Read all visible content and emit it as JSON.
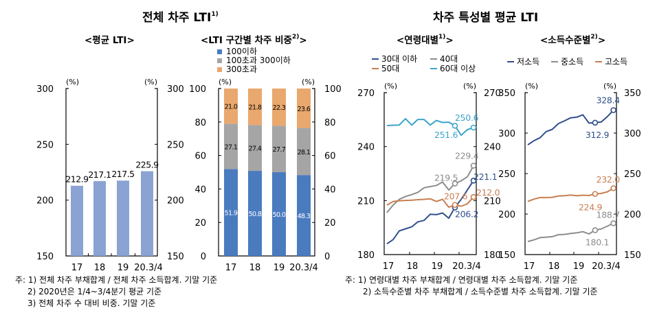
{
  "groups": [
    {
      "title": "전체 차주 LTI",
      "note": "1)"
    },
    {
      "title": "차주 특성별 평균 LTI"
    }
  ],
  "chart_data": [
    {
      "type": "bar",
      "title": "<평균 LTI>",
      "unit": "(%)",
      "categories": [
        "17",
        "18",
        "19",
        "20.3/4"
      ],
      "values": [
        212.9,
        217.1,
        217.5,
        225.9
      ],
      "value_labels": [
        "212.9",
        "217.1",
        "217.5",
        "225.9"
      ],
      "ylim": [
        150,
        300
      ],
      "yticks": [
        "150",
        "200",
        "250",
        "300"
      ],
      "color": "#8aa3d3",
      "grid": false
    },
    {
      "type": "bar",
      "stacked": true,
      "title": "<LTI 구간별 차주 비중",
      "title_note": "2)",
      "title_end": ">",
      "unit": "(%)",
      "categories": [
        "17",
        "18",
        "19",
        "20.3/4"
      ],
      "series": [
        {
          "name": "100이하",
          "color": "#4a7bbf",
          "values": [
            51.9,
            50.8,
            50.0,
            48.3
          ],
          "labels": [
            "51.9",
            "50.8",
            "50.0",
            "48.3"
          ],
          "label_color": "#ffffff"
        },
        {
          "name": "100초과 300이하",
          "color": "#a5a5a5",
          "values": [
            27.1,
            27.4,
            27.7,
            28.1
          ],
          "labels": [
            "27.1",
            "27.4",
            "27.7",
            "28.1"
          ],
          "label_color": "#000000"
        },
        {
          "name": "300초과",
          "color": "#e9a86e",
          "values": [
            21.0,
            21.8,
            22.3,
            23.6
          ],
          "labels": [
            "21.0",
            "21.8",
            "22.3",
            "23.6"
          ],
          "label_color": "#000000"
        }
      ],
      "ylim": [
        0,
        100
      ],
      "yticks": [
        "0",
        "20",
        "40",
        "60",
        "80",
        "100"
      ],
      "legend": "top",
      "grid": false
    },
    {
      "type": "line",
      "title": "<연령대별",
      "title_note": "1)",
      "title_end": ">",
      "unit": "(%)",
      "x": [
        "17.1Q",
        "17.2Q",
        "17.3Q",
        "17.4Q",
        "18.1Q",
        "18.2Q",
        "18.3Q",
        "18.4Q",
        "19.1Q",
        "19.2Q",
        "19.3Q",
        "19.4Q",
        "20.1Q",
        "20.2Q",
        "20.3Q"
      ],
      "xtick_labels": [
        "17",
        "18",
        "19",
        "20.3/4"
      ],
      "ylim": [
        180,
        270
      ],
      "yticks": [
        "180",
        "210",
        "240",
        "270"
      ],
      "legend": "top",
      "series": [
        {
          "name": "30대 이하",
          "color": "#2f4e8c",
          "values": [
            186.0,
            188.3,
            193.2,
            194.3,
            195.4,
            198.2,
            199.0,
            202.4,
            202.2,
            203.1,
            200.2,
            206.2,
            210.7,
            215.9,
            221.1
          ],
          "annotations": [
            {
              "index": 11,
              "label": "206.2"
            },
            {
              "index": 14,
              "label": "221.1"
            }
          ]
        },
        {
          "name": "40대",
          "color": "#8c8c8c",
          "values": [
            203.3,
            207.5,
            210.7,
            212.3,
            213.3,
            214.6,
            217.1,
            217.8,
            218.4,
            220.3,
            215.9,
            219.5,
            221.0,
            223.2,
            229.4
          ],
          "annotations": [
            {
              "index": 11,
              "label": "219.5"
            },
            {
              "index": 14,
              "label": "229.4"
            }
          ]
        },
        {
          "name": "50대",
          "color": "#c87e4f",
          "values": [
            207.5,
            209.5,
            209.9,
            210.1,
            210.2,
            210.5,
            210.7,
            211.0,
            209.5,
            210.7,
            206.3,
            207.6,
            206.9,
            208.2,
            212.0
          ],
          "annotations": [
            {
              "index": 11,
              "label": "207.6"
            },
            {
              "index": 14,
              "label": "212.0"
            }
          ]
        },
        {
          "name": "60대 이상",
          "color": "#3aa5c9",
          "values": [
            251.7,
            251.9,
            252.0,
            255.5,
            252.0,
            255.1,
            255.1,
            252.0,
            254.5,
            253.4,
            253.6,
            251.6,
            246.3,
            249.4,
            250.6
          ],
          "annotations": [
            {
              "index": 11,
              "label": "251.6"
            },
            {
              "index": 14,
              "label": "250.6"
            }
          ]
        }
      ]
    },
    {
      "type": "line",
      "title": "<소득수준별",
      "title_note": "2)",
      "title_end": ">",
      "unit": "(%)",
      "x": [
        "17.1Q",
        "17.2Q",
        "17.3Q",
        "17.4Q",
        "18.1Q",
        "18.2Q",
        "18.3Q",
        "18.4Q",
        "19.1Q",
        "19.2Q",
        "19.3Q",
        "19.4Q",
        "20.1Q",
        "20.2Q",
        "20.3Q"
      ],
      "xtick_labels": [
        "17",
        "18",
        "19",
        "20.3/4"
      ],
      "ylim": [
        150,
        350
      ],
      "yticks": [
        "150",
        "200",
        "250",
        "300",
        "350"
      ],
      "legend": "top",
      "series": [
        {
          "name": "저소득",
          "color": "#2f4e8c",
          "values": [
            285.5,
            290.6,
            294.3,
            301.9,
            304.7,
            311.8,
            315.2,
            318.9,
            319.7,
            322.6,
            312.4,
            312.9,
            313.8,
            320.3,
            328.4
          ],
          "annotations": [
            {
              "index": 11,
              "label": "312.9"
            },
            {
              "index": 14,
              "label": "328.4"
            }
          ]
        },
        {
          "name": "중소득",
          "color": "#8c8c8c",
          "values": [
            166.1,
            168.1,
            170.9,
            171.5,
            172.1,
            174.6,
            174.9,
            176.0,
            176.9,
            178.3,
            175.5,
            180.1,
            181.7,
            185.1,
            188.7
          ],
          "annotations": [
            {
              "index": 11,
              "label": "180.1"
            },
            {
              "index": 14,
              "label": "188.7"
            }
          ]
        },
        {
          "name": "고소득",
          "color": "#c87e4f",
          "values": [
            215.6,
            218.5,
            220.4,
            220.4,
            220.7,
            222.4,
            222.7,
            223.6,
            222.7,
            223.3,
            223.0,
            224.9,
            225.5,
            227.5,
            232.0
          ],
          "annotations": [
            {
              "index": 11,
              "label": "224.9"
            },
            {
              "index": 14,
              "label": "232.0"
            }
          ]
        }
      ]
    }
  ],
  "notes_left": [
    "주: 1) 전체 차주 부채합계 / 전체 차주 소득합계. 기말 기준",
    "2) 2020년은 1/4~3/4분기 평균 기준",
    "3) 전체 차주 수 대비 비중. 기말 기준"
  ],
  "notes_right": [
    "주: 1) 연령대별 차주 부채합계 / 연령대별 차주 소득합계. 기말 기준",
    "2) 소득수준별 차주 부채합계 / 소득수준별 차주 소득합계. 기말 기준"
  ]
}
